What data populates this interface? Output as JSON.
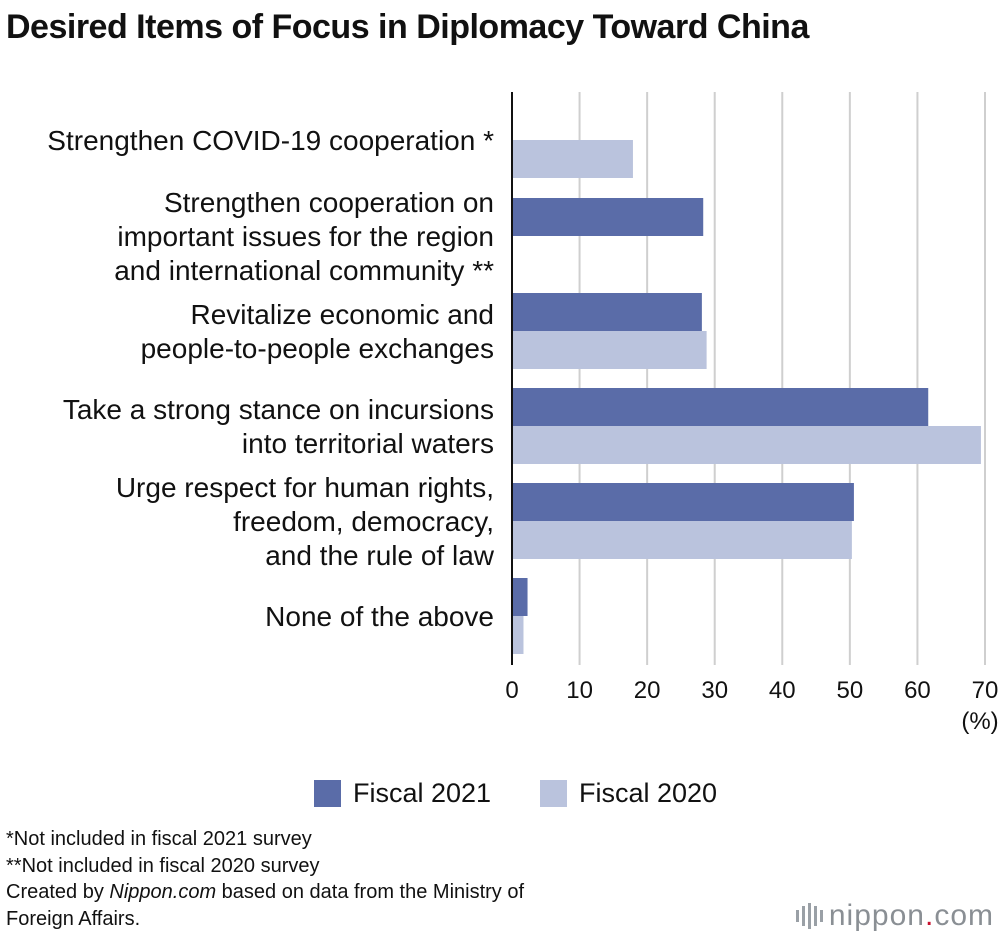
{
  "chart_data": {
    "type": "bar",
    "orientation": "horizontal",
    "title": "Desired Items of Focus in Diplomacy Toward China",
    "categories": [
      [
        "Strengthen COVID-19 cooperation *"
      ],
      [
        "Strengthen cooperation on",
        "important issues for the region",
        "and international community **"
      ],
      [
        "Revitalize economic and",
        "people-to-people exchanges"
      ],
      [
        "Take a strong stance on incursions",
        "into territorial waters"
      ],
      [
        "Urge respect for human rights,",
        "freedom, democracy,",
        "and the rule of law"
      ],
      [
        "None of the above"
      ]
    ],
    "series": [
      {
        "name": "Fiscal 2021",
        "color": "#5a6ca8",
        "values": [
          null,
          28.3,
          28.1,
          61.6,
          50.6,
          2.3
        ]
      },
      {
        "name": "Fiscal 2020",
        "color": "#bac3dd",
        "values": [
          17.9,
          null,
          28.8,
          69.4,
          50.3,
          1.7
        ]
      }
    ],
    "xlim": [
      0,
      70
    ],
    "xticks": [
      0,
      10,
      20,
      30,
      40,
      50,
      60,
      70
    ],
    "xunit": "(%)",
    "grid": true,
    "legend": "bottom"
  },
  "notes": [
    "*Not included in fiscal 2021 survey",
    "**Not included in fiscal 2020 survey"
  ],
  "credit": {
    "prefix": "Created by ",
    "source": "Nippon.com",
    "suffix": " based on data from the Ministry of",
    "line2": "Foreign Affairs."
  },
  "logo": {
    "name": "nippon",
    "dot": ".",
    "tld": "com"
  }
}
